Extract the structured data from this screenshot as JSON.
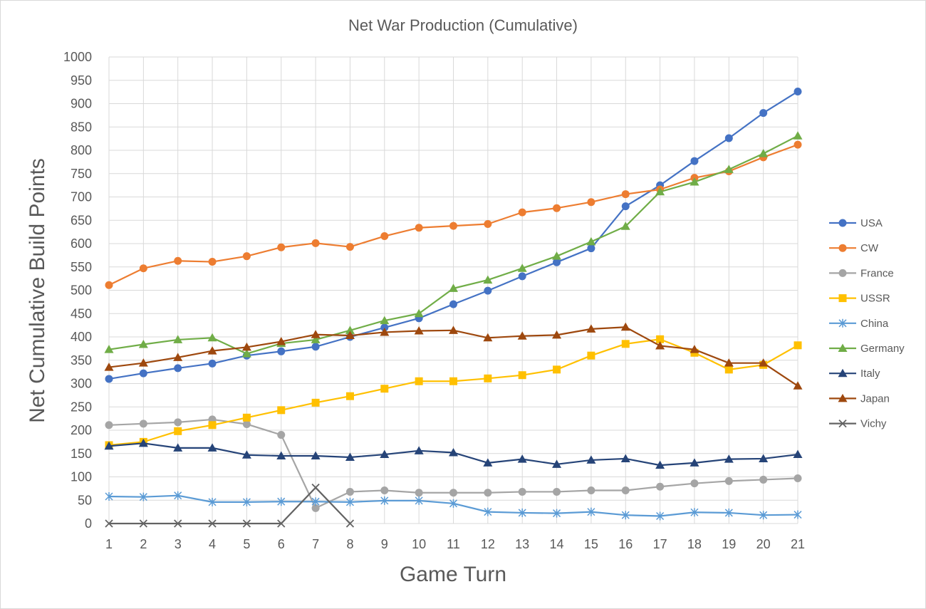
{
  "chart_data": {
    "type": "line",
    "title": "Net War Production (Cumulative)",
    "xlabel": "Game Turn",
    "ylabel": "Net Cumulative Build Points",
    "ylim": [
      0,
      1000
    ],
    "ystep": 50,
    "grid": "vertical and horizontal",
    "legend_position": "right",
    "categories": [
      "1",
      "2",
      "3",
      "4",
      "5",
      "6",
      "7",
      "8",
      "9",
      "10",
      "11",
      "12",
      "13",
      "14",
      "15",
      "16",
      "17",
      "18",
      "19",
      "20",
      "21"
    ],
    "series": [
      {
        "name": "USA",
        "color": "#4472C4",
        "marker": "circle",
        "values": [
          310,
          322,
          333,
          343,
          360,
          369,
          379,
          400,
          420,
          440,
          470,
          499,
          530,
          560,
          590,
          680,
          725,
          777,
          826,
          880,
          926
        ]
      },
      {
        "name": "CW",
        "color": "#ED7D31",
        "marker": "circle",
        "values": [
          511,
          547,
          563,
          561,
          573,
          592,
          601,
          593,
          616,
          634,
          638,
          642,
          667,
          676,
          689,
          706,
          716,
          741,
          755,
          785,
          812
        ]
      },
      {
        "name": "France",
        "color": "#A5A5A5",
        "marker": "circle",
        "values": [
          211,
          214,
          217,
          223,
          213,
          190,
          33,
          68,
          71,
          66,
          66,
          66,
          68,
          68,
          71,
          71,
          79,
          86,
          91,
          94,
          97
        ]
      },
      {
        "name": "USSR",
        "color": "#FFC000",
        "marker": "square",
        "values": [
          168,
          175,
          198,
          211,
          227,
          243,
          259,
          273,
          289,
          305,
          305,
          311,
          318,
          330,
          360,
          385,
          395,
          366,
          330,
          340,
          382
        ]
      },
      {
        "name": "China",
        "color": "#5B9BD5",
        "marker": "star",
        "values": [
          58,
          57,
          60,
          46,
          46,
          47,
          47,
          46,
          49,
          49,
          43,
          25,
          23,
          22,
          25,
          18,
          16,
          24,
          23,
          18,
          19
        ]
      },
      {
        "name": "Germany",
        "color": "#70AD47",
        "marker": "triangle",
        "values": [
          373,
          384,
          394,
          398,
          364,
          386,
          394,
          414,
          435,
          450,
          504,
          522,
          547,
          573,
          604,
          637,
          711,
          732,
          759,
          793,
          831
        ]
      },
      {
        "name": "Italy",
        "color": "#264478",
        "marker": "triangle",
        "values": [
          166,
          172,
          162,
          162,
          147,
          145,
          145,
          142,
          148,
          156,
          152,
          130,
          138,
          127,
          136,
          139,
          125,
          130,
          138,
          139,
          148
        ]
      },
      {
        "name": "Japan",
        "color": "#9E480E",
        "marker": "triangle",
        "values": [
          335,
          344,
          356,
          370,
          378,
          390,
          405,
          403,
          410,
          413,
          414,
          398,
          402,
          404,
          417,
          421,
          381,
          373,
          344,
          344,
          295
        ]
      },
      {
        "name": "Vichy",
        "color": "#636363",
        "marker": "x",
        "values": [
          0,
          0,
          0,
          0,
          0,
          0,
          77,
          0,
          null,
          null,
          null,
          null,
          null,
          null,
          null,
          null,
          null,
          null,
          null,
          null,
          null
        ]
      }
    ]
  }
}
